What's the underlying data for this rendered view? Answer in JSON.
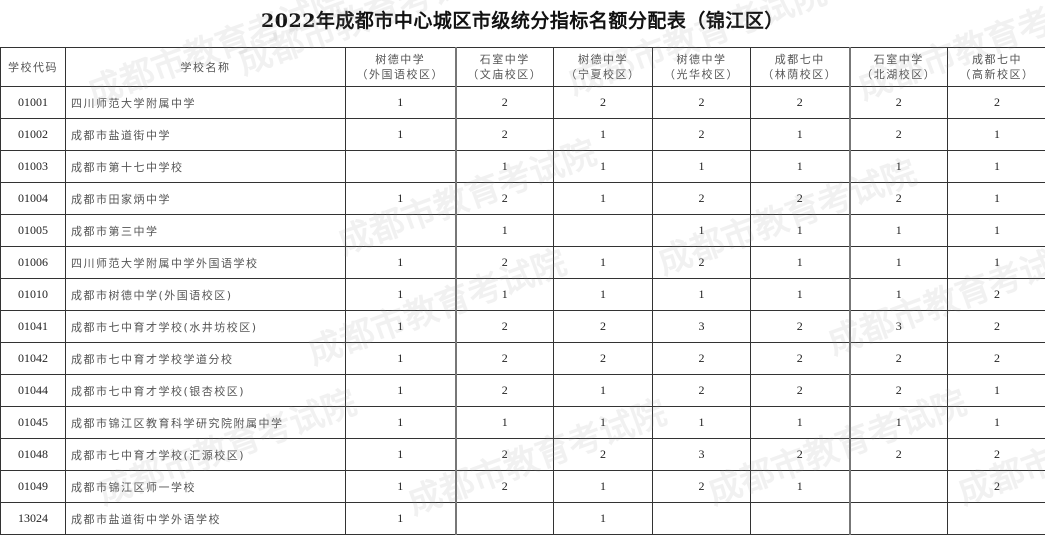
{
  "title": "2022年成都市中心城区市级统分指标名额分配表（锦江区）",
  "watermark": "成都市教育考试院",
  "headers": {
    "code": "学校代码",
    "name": "学校名称",
    "targets": [
      {
        "line1": "树德中学",
        "line2": "（外国语校区）"
      },
      {
        "line1": "石室中学",
        "line2": "（文庙校区）"
      },
      {
        "line1": "树德中学",
        "line2": "（宁夏校区）"
      },
      {
        "line1": "树德中学",
        "line2": "（光华校区）"
      },
      {
        "line1": "成都七中",
        "line2": "（林荫校区）"
      },
      {
        "line1": "石室中学",
        "line2": "（北湖校区）"
      },
      {
        "line1": "成都七中",
        "line2": "（高新校区）"
      }
    ]
  },
  "rows": [
    {
      "code": "01001",
      "name": "四川师范大学附属中学",
      "v": [
        "1",
        "2",
        "2",
        "2",
        "2",
        "2",
        "2"
      ]
    },
    {
      "code": "01002",
      "name": "成都市盐道街中学",
      "v": [
        "1",
        "2",
        "1",
        "2",
        "1",
        "2",
        "1"
      ]
    },
    {
      "code": "01003",
      "name": "成都市第十七中学校",
      "v": [
        "",
        "1",
        "1",
        "1",
        "1",
        "1",
        "1"
      ]
    },
    {
      "code": "01004",
      "name": "成都市田家炳中学",
      "v": [
        "1",
        "2",
        "1",
        "2",
        "2",
        "2",
        "1"
      ]
    },
    {
      "code": "01005",
      "name": "成都市第三中学",
      "v": [
        "",
        "1",
        "",
        "1",
        "1",
        "1",
        "1"
      ]
    },
    {
      "code": "01006",
      "name": "四川师范大学附属中学外国语学校",
      "v": [
        "1",
        "2",
        "1",
        "2",
        "1",
        "1",
        "1"
      ]
    },
    {
      "code": "01010",
      "name": "成都市树德中学(外国语校区)",
      "v": [
        "1",
        "1",
        "1",
        "1",
        "1",
        "1",
        "2"
      ]
    },
    {
      "code": "01041",
      "name": "成都市七中育才学校(水井坊校区)",
      "v": [
        "1",
        "2",
        "2",
        "3",
        "2",
        "3",
        "2"
      ]
    },
    {
      "code": "01042",
      "name": "成都市七中育才学校学道分校",
      "v": [
        "1",
        "2",
        "2",
        "2",
        "2",
        "2",
        "2"
      ]
    },
    {
      "code": "01044",
      "name": "成都市七中育才学校(银杏校区)",
      "v": [
        "1",
        "2",
        "1",
        "2",
        "2",
        "2",
        "1"
      ]
    },
    {
      "code": "01045",
      "name": "成都市锦江区教育科学研究院附属中学",
      "v": [
        "1",
        "1",
        "1",
        "1",
        "1",
        "1",
        "1"
      ]
    },
    {
      "code": "01048",
      "name": "成都市七中育才学校(汇源校区)",
      "v": [
        "1",
        "2",
        "2",
        "3",
        "2",
        "2",
        "2"
      ]
    },
    {
      "code": "01049",
      "name": "成都市锦江区师一学校",
      "v": [
        "1",
        "2",
        "1",
        "2",
        "1",
        "",
        "2"
      ]
    },
    {
      "code": "13024",
      "name": "成都市盐道街中学外语学校",
      "v": [
        "1",
        "",
        "1",
        "",
        "",
        "",
        ""
      ]
    }
  ]
}
